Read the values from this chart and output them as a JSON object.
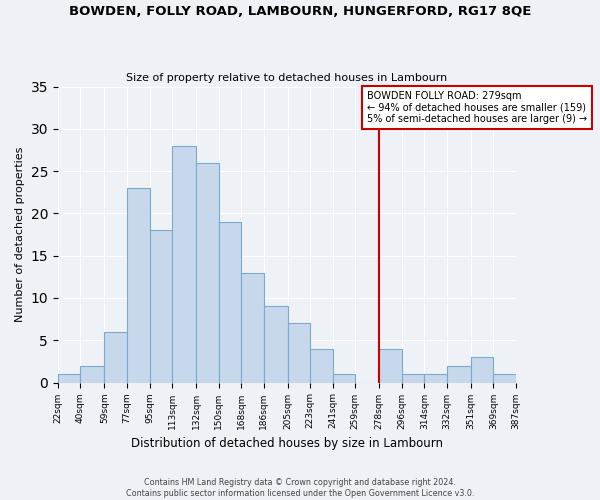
{
  "title": "BOWDEN, FOLLY ROAD, LAMBOURN, HUNGERFORD, RG17 8QE",
  "subtitle": "Size of property relative to detached houses in Lambourn",
  "xlabel": "Distribution of detached houses by size in Lambourn",
  "ylabel": "Number of detached properties",
  "bar_color": "#c8d8ec",
  "bar_edge_color": "#7aaac8",
  "bin_edges": [
    22,
    40,
    59,
    77,
    95,
    113,
    132,
    150,
    168,
    186,
    205,
    223,
    241,
    259,
    278,
    296,
    314,
    332,
    351,
    369,
    387
  ],
  "bin_labels": [
    "22sqm",
    "40sqm",
    "59sqm",
    "77sqm",
    "95sqm",
    "113sqm",
    "132sqm",
    "150sqm",
    "168sqm",
    "186sqm",
    "205sqm",
    "223sqm",
    "241sqm",
    "259sqm",
    "278sqm",
    "296sqm",
    "314sqm",
    "332sqm",
    "351sqm",
    "369sqm",
    "387sqm"
  ],
  "counts": [
    1,
    2,
    6,
    23,
    18,
    28,
    26,
    19,
    13,
    9,
    7,
    4,
    1,
    0,
    4,
    1,
    1,
    2,
    3,
    1
  ],
  "vline_x": 278,
  "vline_color": "#cc0000",
  "annotation_title": "BOWDEN FOLLY ROAD: 279sqm",
  "annotation_line1": "← 94% of detached houses are smaller (159)",
  "annotation_line2": "5% of semi-detached houses are larger (9) →",
  "annotation_box_color": "#cc0000",
  "ylim": [
    0,
    35
  ],
  "yticks": [
    0,
    5,
    10,
    15,
    20,
    25,
    30,
    35
  ],
  "background_color": "#eef2f7",
  "footer_line1": "Contains HM Land Registry data © Crown copyright and database right 2024.",
  "footer_line2": "Contains public sector information licensed under the Open Government Licence v3.0."
}
